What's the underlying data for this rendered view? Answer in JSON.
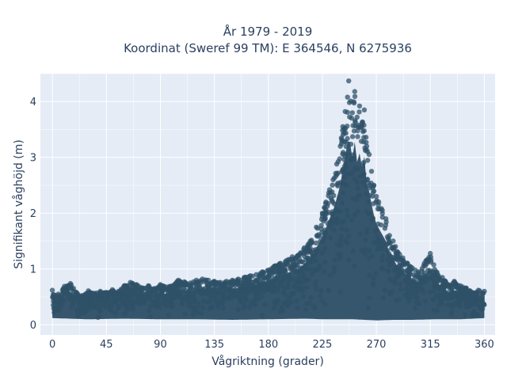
{
  "chart_data": {
    "type": "scatter",
    "title_lines": [
      "År 1979 - 2019",
      "Koordinat (Sweref 99 TM): E 364546, N 6275936"
    ],
    "xlabel": "Vågriktning (grader)",
    "ylabel": "Signifikant våghöjd (m)",
    "xlim": [
      -10,
      369
    ],
    "ylim": [
      -0.18,
      4.5
    ],
    "xticks": [
      0,
      45,
      90,
      135,
      180,
      225,
      270,
      315,
      360
    ],
    "xtick_labels": [
      "0",
      "45",
      "90",
      "135",
      "180",
      "225",
      "270",
      "315",
      "360"
    ],
    "yticks": [
      0,
      1,
      2,
      3,
      4
    ],
    "ytick_labels": [
      "0",
      "1",
      "2",
      "3",
      "4"
    ],
    "grid": true,
    "legend": "none",
    "series": [
      {
        "marker_color": "#2f5168",
        "points": [
          [
            0,
            0.62
          ],
          [
            5,
            0.55
          ],
          [
            10,
            0.69
          ],
          [
            15,
            0.74
          ],
          [
            20,
            0.58
          ],
          [
            25,
            0.52
          ],
          [
            30,
            0.61
          ],
          [
            35,
            0.56
          ],
          [
            40,
            0.6
          ],
          [
            45,
            0.58
          ],
          [
            50,
            0.63
          ],
          [
            55,
            0.6
          ],
          [
            60,
            0.7
          ],
          [
            65,
            0.76
          ],
          [
            70,
            0.72
          ],
          [
            75,
            0.66
          ],
          [
            80,
            0.7
          ],
          [
            85,
            0.65
          ],
          [
            90,
            0.72
          ],
          [
            95,
            0.68
          ],
          [
            100,
            0.7
          ],
          [
            105,
            0.8
          ],
          [
            110,
            0.77
          ],
          [
            115,
            0.75
          ],
          [
            120,
            0.8
          ],
          [
            125,
            0.82
          ],
          [
            130,
            0.8
          ],
          [
            135,
            0.78
          ],
          [
            140,
            0.76
          ],
          [
            145,
            0.78
          ],
          [
            150,
            0.8
          ],
          [
            155,
            0.82
          ],
          [
            160,
            0.85
          ],
          [
            165,
            0.88
          ],
          [
            170,
            0.9
          ],
          [
            175,
            0.95
          ],
          [
            180,
            0.98
          ],
          [
            185,
            1.05
          ],
          [
            190,
            1.1
          ],
          [
            195,
            1.15
          ],
          [
            200,
            1.22
          ],
          [
            205,
            1.25
          ],
          [
            210,
            1.38
          ],
          [
            215,
            1.5
          ],
          [
            220,
            1.75
          ],
          [
            225,
            2.0
          ],
          [
            228,
            2.2
          ],
          [
            231,
            2.42
          ],
          [
            234,
            2.6
          ],
          [
            237,
            2.88
          ],
          [
            240,
            3.2
          ],
          [
            242,
            3.55
          ],
          [
            244,
            3.82
          ],
          [
            247,
            4.37
          ],
          [
            250,
            3.8
          ],
          [
            252,
            4.18
          ],
          [
            254,
            3.72
          ],
          [
            256,
            3.92
          ],
          [
            258,
            3.6
          ],
          [
            260,
            3.85
          ],
          [
            262,
            3.2
          ],
          [
            264,
            3.05
          ],
          [
            266,
            2.75
          ],
          [
            268,
            2.5
          ],
          [
            270,
            2.3
          ],
          [
            272,
            2.2
          ],
          [
            275,
            2.05
          ],
          [
            278,
            1.9
          ],
          [
            281,
            1.6
          ],
          [
            284,
            1.5
          ],
          [
            288,
            1.3
          ],
          [
            292,
            1.2
          ],
          [
            296,
            1.1
          ],
          [
            300,
            1.02
          ],
          [
            305,
            0.95
          ],
          [
            310,
            1.1
          ],
          [
            315,
            1.28
          ],
          [
            320,
            0.95
          ],
          [
            325,
            0.85
          ],
          [
            330,
            0.72
          ],
          [
            335,
            0.78
          ],
          [
            340,
            0.7
          ],
          [
            345,
            0.66
          ],
          [
            350,
            0.58
          ],
          [
            355,
            0.62
          ],
          [
            360,
            0.6
          ]
        ],
        "min_points": [
          [
            0,
            0.1
          ],
          [
            30,
            0.08
          ],
          [
            60,
            0.09
          ],
          [
            90,
            0.08
          ],
          [
            120,
            0.08
          ],
          [
            150,
            0.07
          ],
          [
            180,
            0.08
          ],
          [
            210,
            0.09
          ],
          [
            225,
            0.08
          ],
          [
            240,
            0.08
          ],
          [
            250,
            0.08
          ],
          [
            260,
            0.07
          ],
          [
            270,
            0.06
          ],
          [
            285,
            0.07
          ],
          [
            300,
            0.07
          ],
          [
            320,
            0.08
          ],
          [
            340,
            0.08
          ],
          [
            360,
            0.1
          ]
        ]
      }
    ]
  }
}
